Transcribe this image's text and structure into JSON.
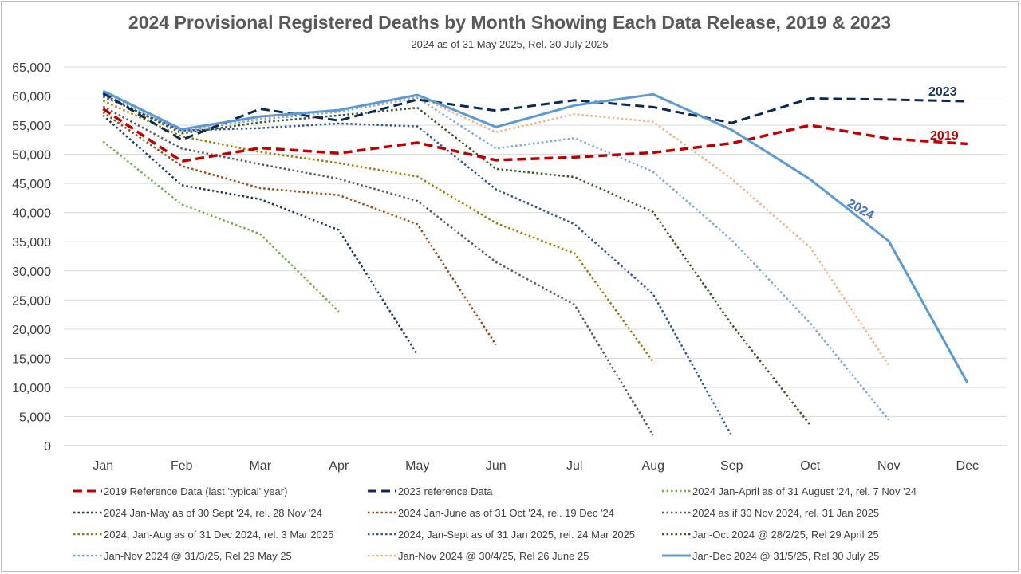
{
  "chart_data": {
    "type": "line",
    "title": "2024 Provisional Registered Deaths by Month Showing Each Data Release, 2019 & 2023",
    "subtitle": "2024 as of 31 May 2025, Rel. 30 July 2025",
    "xlabel": "",
    "ylabel": "",
    "ylim": [
      0,
      65000
    ],
    "yticks": [
      0,
      5000,
      10000,
      15000,
      20000,
      25000,
      30000,
      35000,
      40000,
      45000,
      50000,
      55000,
      60000,
      65000
    ],
    "ytick_labels": [
      "0",
      "5,000",
      "10,000",
      "15,000",
      "20,000",
      "25,000",
      "30,000",
      "35,000",
      "40,000",
      "45,000",
      "50,000",
      "55,000",
      "60,000",
      "65,000"
    ],
    "categories": [
      "Jan",
      "Feb",
      "Mar",
      "Apr",
      "May",
      "Jun",
      "Jul",
      "Aug",
      "Sep",
      "Oct",
      "Nov",
      "Dec"
    ],
    "grid": true,
    "legend_position": "bottom",
    "series": [
      {
        "name": "2019  Reference Data (last 'typical' year)",
        "color": "#c00000",
        "style": "dash",
        "width": 3.5,
        "values": [
          57800,
          48800,
          51100,
          50200,
          52000,
          49000,
          49500,
          50300,
          51900,
          55000,
          52700,
          51800
        ]
      },
      {
        "name": "2023 reference Data",
        "color": "#0d2a52",
        "style": "dash",
        "width": 3,
        "values": [
          60500,
          52500,
          57800,
          55800,
          59400,
          57500,
          59300,
          58100,
          55400,
          59600,
          59400,
          59100
        ]
      },
      {
        "name": "2024 Jan-April as of 31 August '24, rel. 7 Nov '24",
        "color": "#70ad47",
        "style": "dot",
        "width": 2.5,
        "values": [
          52200,
          41400,
          36300,
          23000,
          null,
          null,
          null,
          null,
          null,
          null,
          null,
          null
        ]
      },
      {
        "name": "2024 Jan-May as of 30 Sept '24, rel. 28 Nov '24",
        "color": "#1f3864",
        "style": "dot",
        "width": 2.5,
        "values": [
          56700,
          44700,
          42300,
          37000,
          15600,
          null,
          null,
          null,
          null,
          null,
          null,
          null
        ]
      },
      {
        "name": "2024 Jan-June as of 31 Oct '24, rel. 19 Dec '24",
        "color": "#9c4a12",
        "style": "dot",
        "width": 2.5,
        "values": [
          57200,
          48000,
          44200,
          43000,
          38000,
          17300,
          null,
          null,
          null,
          null,
          null,
          null
        ]
      },
      {
        "name": "2024 as if 30 Nov 2024, rel. 31 Jan 2025",
        "color": "#595959",
        "style": "dot",
        "width": 2.5,
        "values": [
          58200,
          51000,
          48300,
          45800,
          42000,
          31500,
          24200,
          1800,
          null,
          null,
          null,
          null
        ]
      },
      {
        "name": "2024, Jan-Aug as of 31 Dec 2024, rel. 3 Mar 2025",
        "color": "#9b7a00",
        "style": "dot",
        "width": 2.5,
        "values": [
          59200,
          53100,
          50400,
          48500,
          46200,
          38200,
          33000,
          14400,
          null,
          null,
          null,
          null
        ]
      },
      {
        "name": "2024, Jan-Sept as of 31 Jan 2025, rel. 24 Mar 2025",
        "color": "#2f5597",
        "style": "dot",
        "width": 2.5,
        "values": [
          59900,
          54100,
          54500,
          55300,
          54800,
          44000,
          38000,
          26000,
          1700,
          null,
          null,
          null
        ]
      },
      {
        "name": "Jan-Oct 2024 @ 28/2/25, Rel 29 April 25",
        "color": "#375623",
        "style": "dot",
        "width": 2.5,
        "values": [
          60300,
          53600,
          55500,
          56700,
          58000,
          47500,
          46100,
          40100,
          20800,
          3500,
          null,
          null
        ]
      },
      {
        "name": "Jan-Nov 2024 @ 31/3/25, Rel 29 May 25",
        "color": "#7aa6d8",
        "style": "dot",
        "width": 2.5,
        "values": [
          60600,
          54000,
          56000,
          57300,
          59700,
          51000,
          52800,
          47000,
          35300,
          21000,
          4400,
          null
        ]
      },
      {
        "name": "Jan-Nov 2024 @ 30/4/25, Rel 26 June 25",
        "color": "#f4b183",
        "style": "dot",
        "width": 2.5,
        "values": [
          60800,
          54200,
          56300,
          57500,
          60000,
          53800,
          56900,
          55600,
          45800,
          34000,
          13800,
          null
        ]
      },
      {
        "name": "Jan-Dec 2024 @ 31/5/25, Rel 30 July 25",
        "color": "#5b9bd5",
        "style": "solid",
        "width": 3,
        "values": [
          60900,
          54300,
          56500,
          57600,
          60200,
          54700,
          58400,
          60300,
          54200,
          45700,
          35100,
          10800
        ]
      }
    ],
    "annotations": [
      {
        "text": "2023",
        "color": "#1f3864"
      },
      {
        "text": "2019",
        "color": "#c00000"
      },
      {
        "text": "2024",
        "color": "#4472c4"
      }
    ]
  }
}
